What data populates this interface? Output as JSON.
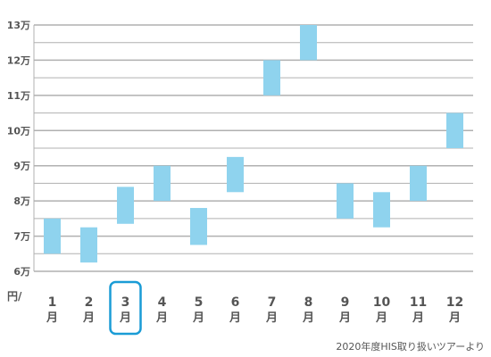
{
  "chart_data": {
    "type": "bar",
    "subtype": "floating-range",
    "categories": [
      "1",
      "2",
      "3",
      "4",
      "5",
      "6",
      "7",
      "8",
      "9",
      "10",
      "11",
      "12"
    ],
    "month_suffix": "月",
    "ranges": [
      {
        "low": 6.5,
        "high": 7.5
      },
      {
        "low": 6.25,
        "high": 7.25
      },
      {
        "low": 7.35,
        "high": 8.4
      },
      {
        "low": 8.0,
        "high": 9.0
      },
      {
        "low": 6.75,
        "high": 7.8
      },
      {
        "low": 8.25,
        "high": 9.25
      },
      {
        "low": 11.0,
        "high": 12.0
      },
      {
        "low": 12.0,
        "high": 13.0
      },
      {
        "low": 7.5,
        "high": 8.5
      },
      {
        "low": 7.25,
        "high": 8.25
      },
      {
        "low": 8.0,
        "high": 9.0
      },
      {
        "low": 9.5,
        "high": 10.5
      }
    ],
    "yticks": [
      "6万",
      "7万",
      "8万",
      "9万",
      "10万",
      "11万",
      "12万",
      "13万"
    ],
    "ylim": [
      6,
      13
    ],
    "ylabel": "円/",
    "highlight_index": 2,
    "grid": true,
    "bar_color": "#8fd3ee",
    "highlight_color": "#1a9cd6",
    "grid_color": "#b0b0b0",
    "source_text": "2020年度HIS取り扱いツアーより"
  }
}
